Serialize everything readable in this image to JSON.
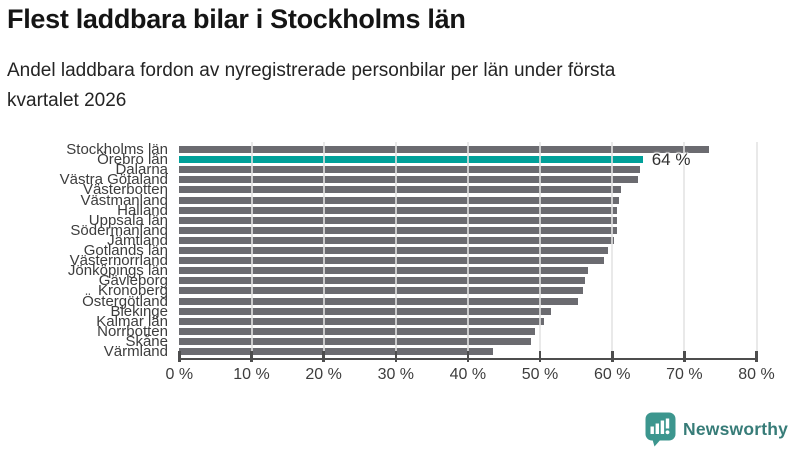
{
  "header": {
    "title": "Flest laddbara bilar i Stockholms län",
    "subtitle_lines": [
      "Andel laddbara fordon av nyregistrerade personbilar per län under första",
      "kvartalet 2026"
    ]
  },
  "chart_data": {
    "type": "bar",
    "orientation": "horizontal",
    "title": "Flest laddbara bilar i Stockholms län",
    "subtitle": "Andel laddbara fordon av nyregistrerade personbilar per län under första kvartalet 2026",
    "unit": "%",
    "categories": [
      "Stockholms län",
      "Örebro län",
      "Dalarna",
      "Västra Götaland",
      "Västerbotten",
      "Västmanland",
      "Halland",
      "Uppsala län",
      "Södermanland",
      "Jämtland",
      "Gotlands län",
      "Västernorrland",
      "Jönköpings län",
      "Gävleborg",
      "Kronoberg",
      "Östergötland",
      "Blekinge",
      "Kalmar län",
      "Norrbotten",
      "Skåne",
      "Värmland"
    ],
    "values": [
      73.4,
      64.3,
      63.8,
      63.6,
      61.2,
      60.9,
      60.7,
      60.7,
      60.7,
      60.2,
      59.4,
      58.9,
      56.6,
      56.2,
      56.0,
      55.2,
      51.5,
      50.5,
      49.3,
      48.8,
      43.5
    ],
    "highlight": {
      "index": 1,
      "category": "Örebro län",
      "label": "64 %"
    },
    "xlim": [
      0,
      80
    ],
    "x_ticks": [
      0,
      10,
      20,
      30,
      40,
      50,
      60,
      70,
      80
    ],
    "x_tick_labels": [
      "0 %",
      "10 %",
      "20 %",
      "30 %",
      "40 %",
      "50 %",
      "60 %",
      "70 %",
      "80 %"
    ],
    "grid": true,
    "legend": false,
    "bar_color": "#6b6b70",
    "highlight_color": "#00a099"
  },
  "footer": {
    "brand": "Newsworthy"
  },
  "colors": {
    "logo_icon": "#3c968e",
    "logo_glyph": "#ffffff",
    "logo_text": "#377c78"
  }
}
